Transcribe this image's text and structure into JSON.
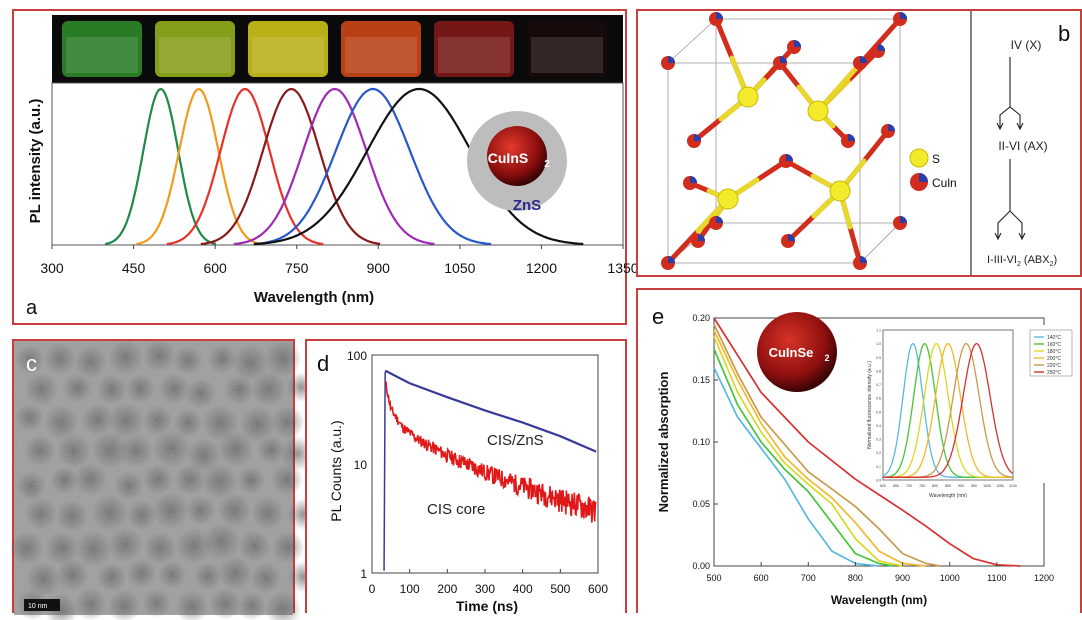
{
  "colors": {
    "frame": "#c8403d",
    "zns_shell": "#bdbdbd",
    "core_red": "#9b1111",
    "s_atom": "#f2ea2a",
    "culn_atom_blue": "#2b3ea8",
    "bond_red": "#d12c1c",
    "cis_zns_curve": "#3a3a9a",
    "cis_core_curve": "#e01818"
  },
  "panel_a": {
    "letter": "a",
    "ylabel": "PL intensity (a.u.)",
    "xlabel": "Wavelength (nm)",
    "core_label": "CuInS",
    "core_sub": "2",
    "shell_label": "ZnS",
    "vial_colors": [
      "#2f8f2a",
      "#9bb91c",
      "#d8cc1a",
      "#d84a18",
      "#8a1a1a",
      "#1a0a0a"
    ]
  },
  "panel_b": {
    "letter": "b",
    "legend": [
      {
        "label": "S",
        "color": "#f2ea2a"
      },
      {
        "label": "Culn",
        "color": "#2b3ea8"
      }
    ],
    "tree": {
      "level1": "IV (X)",
      "level2": "II-VI (AX)",
      "level3": "I-III-VI",
      "level3_sub": "2",
      "level3_rest": " (ABX",
      "level3_sub2": "2",
      "level3_end": ")"
    }
  },
  "panel_c": {
    "letter": "c",
    "scale_bar": "10 nm"
  },
  "panel_d": {
    "letter": "d",
    "ylabel": "PL Counts (a.u.)",
    "xlabel": "Time (ns)",
    "label_top": "CIS/ZnS",
    "label_bottom": "CIS core"
  },
  "panel_e": {
    "letter": "e",
    "ylabel": "Normalized absorption",
    "xlabel": "Wavelength (nm)",
    "core_label": "CuInSe",
    "core_sub": "2",
    "inset_ylabel": "Normalized fluorescence intensity (a.u.)",
    "inset_xlabel": "Wavelength (nm)"
  },
  "chart_data": [
    {
      "id": "panel-a-pl",
      "type": "line",
      "xlabel": "Wavelength (nm)",
      "ylabel": "PL intensity (a.u.)",
      "xlim": [
        300,
        1350
      ],
      "ylim": [
        0,
        1.0
      ],
      "xticks": [
        300,
        450,
        600,
        750,
        900,
        1050,
        1200,
        1350
      ],
      "series": [
        {
          "color": "#1f8a4a",
          "peak": 500,
          "width": 32
        },
        {
          "color": "#f39a1c",
          "peak": 570,
          "width": 36
        },
        {
          "color": "#e8312a",
          "peak": 655,
          "width": 45
        },
        {
          "color": "#8a1a1a",
          "peak": 740,
          "width": 52
        },
        {
          "color": "#a12ab5",
          "peak": 820,
          "width": 58
        },
        {
          "color": "#2858c8",
          "peak": 890,
          "width": 68
        },
        {
          "color": "#111111",
          "peak": 975,
          "width": 95
        }
      ]
    },
    {
      "id": "panel-d-decay",
      "type": "line",
      "xlabel": "Time (ns)",
      "ylabel": "PL Counts (a.u.)",
      "yscale": "log",
      "xlim": [
        0,
        600
      ],
      "ylim": [
        1,
        100
      ],
      "xticks": [
        0,
        100,
        200,
        300,
        400,
        500,
        600
      ],
      "yticks": [
        1,
        10,
        100
      ],
      "series": [
        {
          "name": "CIS/ZnS",
          "color": "#3a3a9a",
          "x": [
            35,
            100,
            200,
            300,
            400,
            500,
            595
          ],
          "y": [
            72,
            55,
            41,
            31,
            24,
            18,
            13
          ]
        },
        {
          "name": "CIS core",
          "color": "#e01818",
          "x": [
            35,
            50,
            80,
            120,
            200,
            300,
            400,
            500,
            595
          ],
          "y": [
            58,
            32,
            22,
            17,
            12,
            8.5,
            6.3,
            4.8,
            3.8
          ]
        }
      ]
    },
    {
      "id": "panel-e-absorption",
      "type": "line",
      "xlabel": "Wavelength (nm)",
      "ylabel": "Normalized absorption",
      "xlim": [
        500,
        1200
      ],
      "ylim": [
        0,
        0.2
      ],
      "xticks": [
        500,
        600,
        700,
        800,
        900,
        1000,
        1100,
        1200
      ],
      "yticks": [
        0.0,
        0.05,
        0.1,
        0.15,
        0.2
      ],
      "series": [
        {
          "color": "#5ab8e0",
          "x": [
            500,
            550,
            600,
            650,
            700,
            750,
            800,
            850
          ],
          "y": [
            0.16,
            0.12,
            0.095,
            0.07,
            0.038,
            0.012,
            0.002,
            0
          ]
        },
        {
          "color": "#46c43a",
          "x": [
            500,
            550,
            600,
            650,
            700,
            750,
            800,
            850,
            880
          ],
          "y": [
            0.175,
            0.13,
            0.1,
            0.078,
            0.06,
            0.035,
            0.01,
            0.002,
            0
          ]
        },
        {
          "color": "#d8d824",
          "x": [
            500,
            550,
            600,
            650,
            700,
            750,
            800,
            850,
            900
          ],
          "y": [
            0.185,
            0.14,
            0.108,
            0.083,
            0.066,
            0.05,
            0.022,
            0.004,
            0
          ]
        },
        {
          "color": "#f2b830",
          "x": [
            500,
            550,
            600,
            650,
            700,
            750,
            800,
            850,
            900,
            950
          ],
          "y": [
            0.19,
            0.15,
            0.115,
            0.088,
            0.07,
            0.055,
            0.035,
            0.012,
            0.002,
            0
          ]
        },
        {
          "color": "#c89a4a",
          "x": [
            500,
            550,
            600,
            700,
            750,
            800,
            850,
            900,
            950,
            980
          ],
          "y": [
            0.195,
            0.155,
            0.12,
            0.076,
            0.062,
            0.048,
            0.03,
            0.01,
            0.002,
            0
          ]
        },
        {
          "color": "#d83030",
          "x": [
            500,
            550,
            600,
            700,
            800,
            900,
            950,
            1000,
            1050,
            1100,
            1150
          ],
          "y": [
            0.2,
            0.17,
            0.14,
            0.1,
            0.07,
            0.045,
            0.032,
            0.018,
            0.006,
            0.001,
            0
          ]
        }
      ]
    },
    {
      "id": "panel-e-inset",
      "type": "line",
      "xlabel": "Wavelength (nm)",
      "ylabel": "Normalized fluorescence intensity (a.u.)",
      "xlim": [
        600,
        1100
      ],
      "ylim": [
        0,
        1.1
      ],
      "xticks": [
        600,
        650,
        700,
        750,
        800,
        850,
        900,
        950,
        1000,
        1050,
        1100
      ],
      "yticks": [
        0.0,
        0.1,
        0.2,
        0.3,
        0.4,
        0.5,
        0.6,
        0.7,
        0.8,
        0.9,
        1.0,
        1.1
      ],
      "legend": [
        "140°C",
        "160°C",
        "180°C",
        "200°C",
        "220°C",
        "250°C"
      ],
      "series": [
        {
          "name": "140°C",
          "color": "#5ab8e0",
          "peak": 715,
          "width": 38
        },
        {
          "name": "160°C",
          "color": "#46c43a",
          "peak": 760,
          "width": 42
        },
        {
          "name": "180°C",
          "color": "#d8d824",
          "peak": 805,
          "width": 46
        },
        {
          "name": "200°C",
          "color": "#f2b830",
          "peak": 850,
          "width": 48
        },
        {
          "name": "220°C",
          "color": "#c89a4a",
          "peak": 920,
          "width": 50
        },
        {
          "name": "250°C",
          "color": "#d83030",
          "peak": 960,
          "width": 52
        }
      ]
    }
  ]
}
